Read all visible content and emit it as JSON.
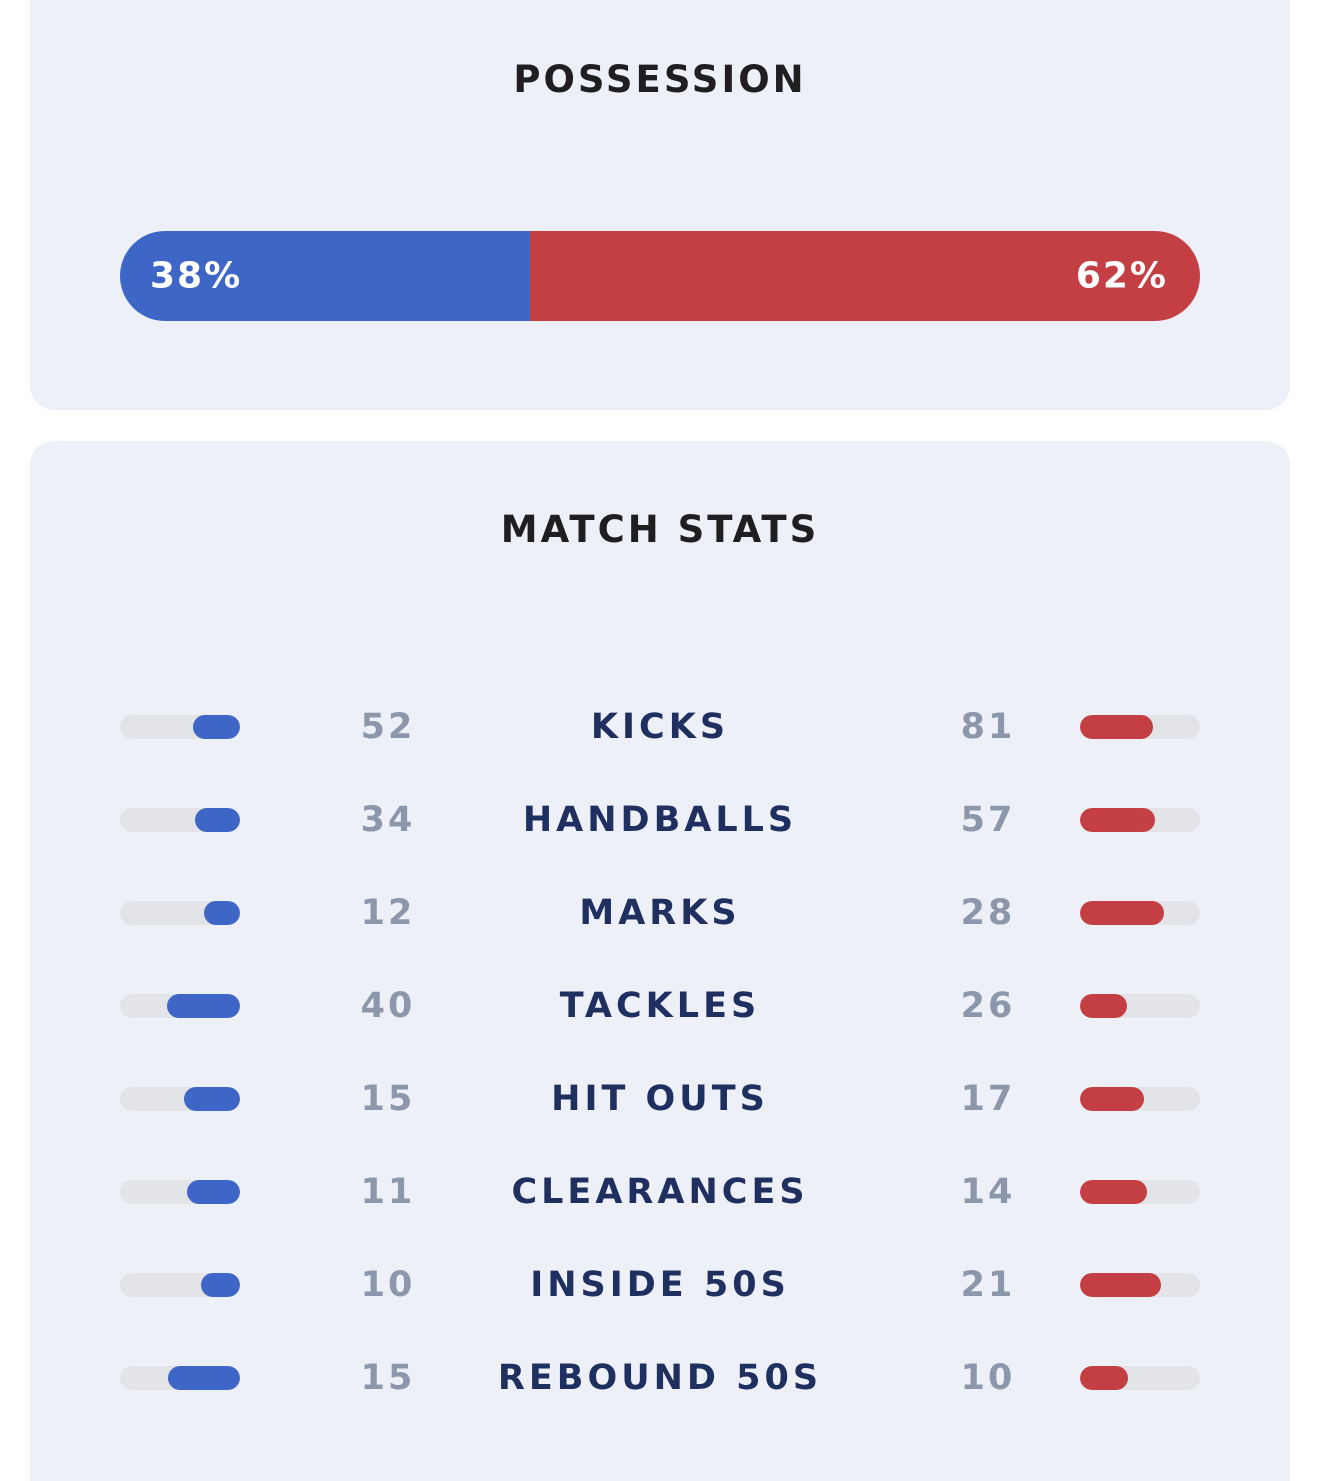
{
  "possession": {
    "title": "POSSESSION",
    "home_pct": 38,
    "away_pct": 62,
    "home_label": "38%",
    "away_label": "62%",
    "home_color": "#3d66c6",
    "away_color": "#c43f43"
  },
  "match_stats": {
    "title": "MATCH STATS",
    "rows": [
      {
        "label": "KICKS",
        "home": "52",
        "away": "81"
      },
      {
        "label": "HANDBALLS",
        "home": "34",
        "away": "57"
      },
      {
        "label": "MARKS",
        "home": "12",
        "away": "28"
      },
      {
        "label": "TACKLES",
        "home": "40",
        "away": "26"
      },
      {
        "label": "HIT OUTS",
        "home": "15",
        "away": "17"
      },
      {
        "label": "CLEARANCES",
        "home": "11",
        "away": "14"
      },
      {
        "label": "INSIDE 50S",
        "home": "10",
        "away": "21"
      },
      {
        "label": "REBOUND 50S",
        "home": "15",
        "away": "10"
      }
    ]
  }
}
